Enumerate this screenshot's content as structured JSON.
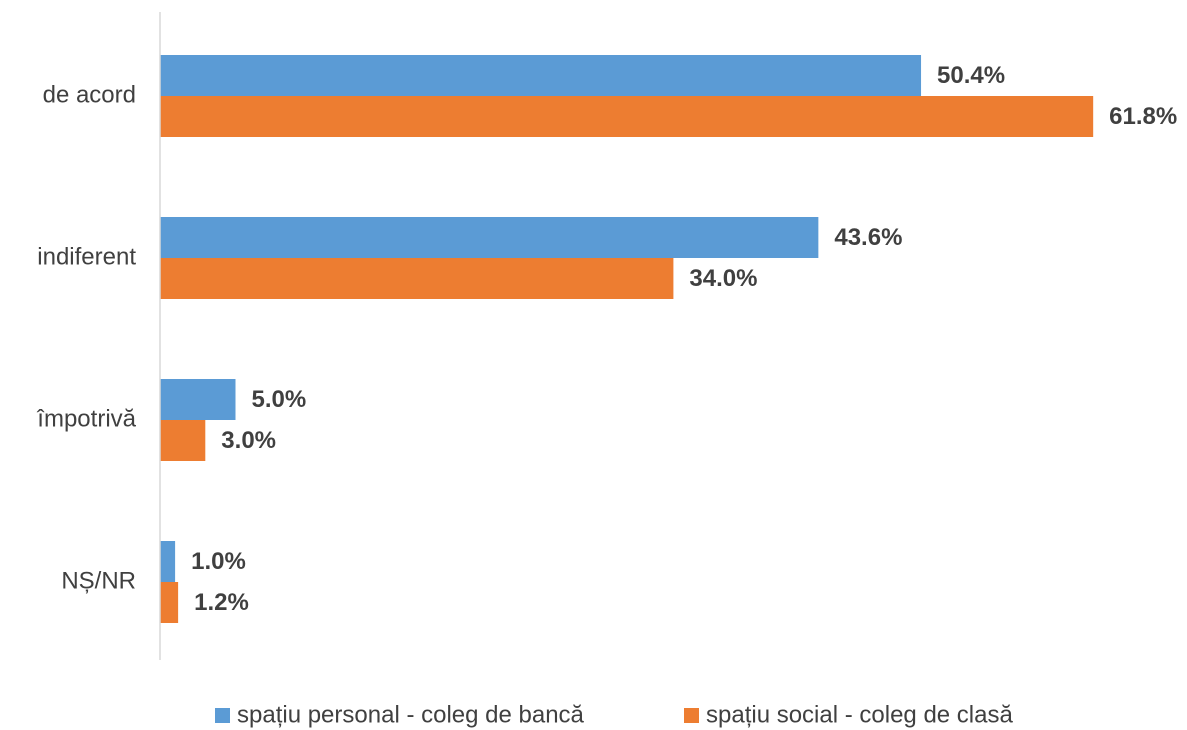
{
  "chart_data": {
    "type": "bar",
    "orientation": "horizontal",
    "title": "",
    "xlabel": "",
    "ylabel": "",
    "categories": [
      "de acord",
      "indiferent",
      "împotrivă",
      "NȘ/NR"
    ],
    "series": [
      {
        "name": "spațiu personal - coleg de bancă",
        "color": "#5B9BD5",
        "values": [
          50.4,
          43.6,
          5.0,
          1.0
        ],
        "labels": [
          "50.4%",
          "43.6%",
          "5.0%",
          "1.0%"
        ]
      },
      {
        "name": "spațiu social - coleg de clasă",
        "color": "#ED7D31",
        "values": [
          61.8,
          34.0,
          3.0,
          1.2
        ],
        "labels": [
          "61.8%",
          "34.0%",
          "3.0%",
          "1.2%"
        ]
      }
    ],
    "xlim": [
      0,
      61.8
    ],
    "grid": false,
    "legend_position": "bottom",
    "axis_color": "#D9D9D9",
    "text_color": "#404040"
  }
}
